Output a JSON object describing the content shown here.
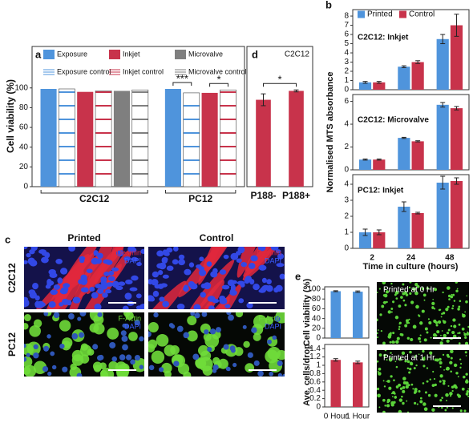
{
  "chart_data": [
    {
      "type": "bar",
      "panel": "a",
      "ylabel": "Cell viability (%)",
      "categories": [
        "C2C12",
        "PC12"
      ],
      "series": [
        {
          "name": "Exposure",
          "color": "#4f94dc",
          "values": [
            99,
            99
          ]
        },
        {
          "name": "Exposure control",
          "color": "#4f94dc",
          "hatch": true,
          "values": [
            99,
            95
          ]
        },
        {
          "name": "Inkjet",
          "color": "#c8334b",
          "values": [
            96,
            95
          ]
        },
        {
          "name": "Inkjet control",
          "color": "#c8334b",
          "hatch": true,
          "values": [
            97,
            98
          ]
        },
        {
          "name": "Microvalve",
          "color": "#7f7f7f",
          "values": [
            97,
            null
          ]
        },
        {
          "name": "Microvalve control",
          "color": "#7f7f7f",
          "hatch": true,
          "values": [
            98,
            null
          ]
        }
      ],
      "ylim": [
        0,
        142
      ],
      "yticks": [
        0,
        20,
        40,
        60,
        80,
        100
      ],
      "annotations": [
        "***",
        "*"
      ]
    },
    {
      "type": "bar",
      "panel": "d",
      "subtitle": "C2C12",
      "categories": [
        "P188-",
        "P188+"
      ],
      "values": [
        88,
        97
      ],
      "errors": [
        6,
        1
      ],
      "color": "#c8334b",
      "ylim": [
        0,
        142
      ],
      "annotations": [
        "*"
      ]
    },
    {
      "type": "bar",
      "panel": "b",
      "subtitle": "C2C12: Inkjet",
      "series": [
        {
          "name": "Printed",
          "color": "#4f94dc",
          "values": [
            0.8,
            2.5,
            5.5
          ],
          "errors": [
            0.1,
            0.1,
            0.5
          ]
        },
        {
          "name": "Control",
          "color": "#c8334b",
          "values": [
            0.8,
            3.0,
            7.0
          ],
          "errors": [
            0.1,
            0.15,
            1.2
          ]
        }
      ],
      "ylim": [
        0,
        8.7
      ],
      "yticks": [
        0,
        1,
        2,
        3,
        4,
        5,
        6,
        7,
        8
      ]
    },
    {
      "type": "bar",
      "subtitle": "C2C12: Microvalve",
      "ylabel": "Normalised MTS absorbance",
      "series": [
        {
          "color": "#4f94dc",
          "values": [
            0.9,
            2.8,
            5.7
          ],
          "errors": [
            0.05,
            0.05,
            0.2
          ]
        },
        {
          "color": "#c8334b",
          "values": [
            0.9,
            2.5,
            5.4
          ],
          "errors": [
            0.05,
            0.05,
            0.15
          ]
        }
      ],
      "ylim": [
        0,
        6.6
      ],
      "yticks": [
        0,
        2,
        4,
        6
      ]
    },
    {
      "type": "bar",
      "subtitle": "PC12: Inkjet",
      "categories": [
        "2",
        "24",
        "48"
      ],
      "xlabel": "Time in culture (hours)",
      "series": [
        {
          "color": "#4f94dc",
          "values": [
            1.0,
            2.6,
            4.1
          ],
          "errors": [
            0.2,
            0.3,
            0.4
          ]
        },
        {
          "color": "#c8334b",
          "values": [
            1.0,
            2.2,
            4.2
          ],
          "errors": [
            0.15,
            0.05,
            0.2
          ]
        }
      ],
      "ylim": [
        0,
        4.6
      ],
      "yticks": [
        0,
        1,
        2,
        3,
        4
      ]
    },
    {
      "type": "bar",
      "panel": "e",
      "ylabel": "Cell viability (%)",
      "values": [
        96,
        95
      ],
      "errors": [
        1,
        1.5
      ],
      "color": "#4f94dc",
      "ylim": [
        0,
        105
      ],
      "yticks": [
        0,
        20,
        40,
        60,
        80,
        100
      ]
    },
    {
      "type": "bar",
      "ylabel": "Ave. cells/drop",
      "categories": [
        "0 Hour",
        "1 Hour"
      ],
      "values": [
        1.13,
        1.07
      ],
      "errors": [
        0.03,
        0.03
      ],
      "color": "#c8334b",
      "ylim": [
        0,
        1.5
      ],
      "yticks": [
        0,
        0.2,
        0.4,
        0.6,
        0.8,
        1,
        1.2,
        1.4
      ]
    }
  ],
  "images": {
    "panel": "c",
    "columns": [
      "Printed",
      "Control"
    ],
    "rows": [
      "C2C12",
      "PC12"
    ],
    "stains": [
      [
        "Desmin",
        "DAPI"
      ],
      [
        "F-Actin",
        "DAPI"
      ]
    ],
    "captions": [
      "Printed at 0 Hr",
      "Printed at 1 Hr"
    ]
  }
}
